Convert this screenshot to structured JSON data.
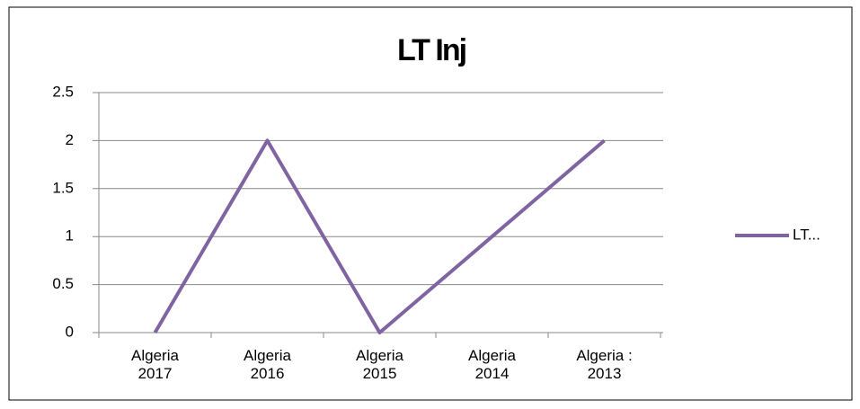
{
  "chart_data": {
    "type": "line",
    "title": "LT Inj",
    "categories": [
      "Algeria 2017",
      "Algeria 2016",
      "Algeria 2015",
      "Algeria 2014",
      "Algeria : 2013"
    ],
    "series": [
      {
        "name": "LT...",
        "color": "#8064a2",
        "values": [
          0,
          2,
          0,
          1,
          2
        ]
      }
    ],
    "ylim": [
      0,
      2.5
    ],
    "yticks": [
      0,
      0.5,
      1,
      1.5,
      2,
      2.5
    ],
    "grid": true,
    "legend": "right"
  }
}
